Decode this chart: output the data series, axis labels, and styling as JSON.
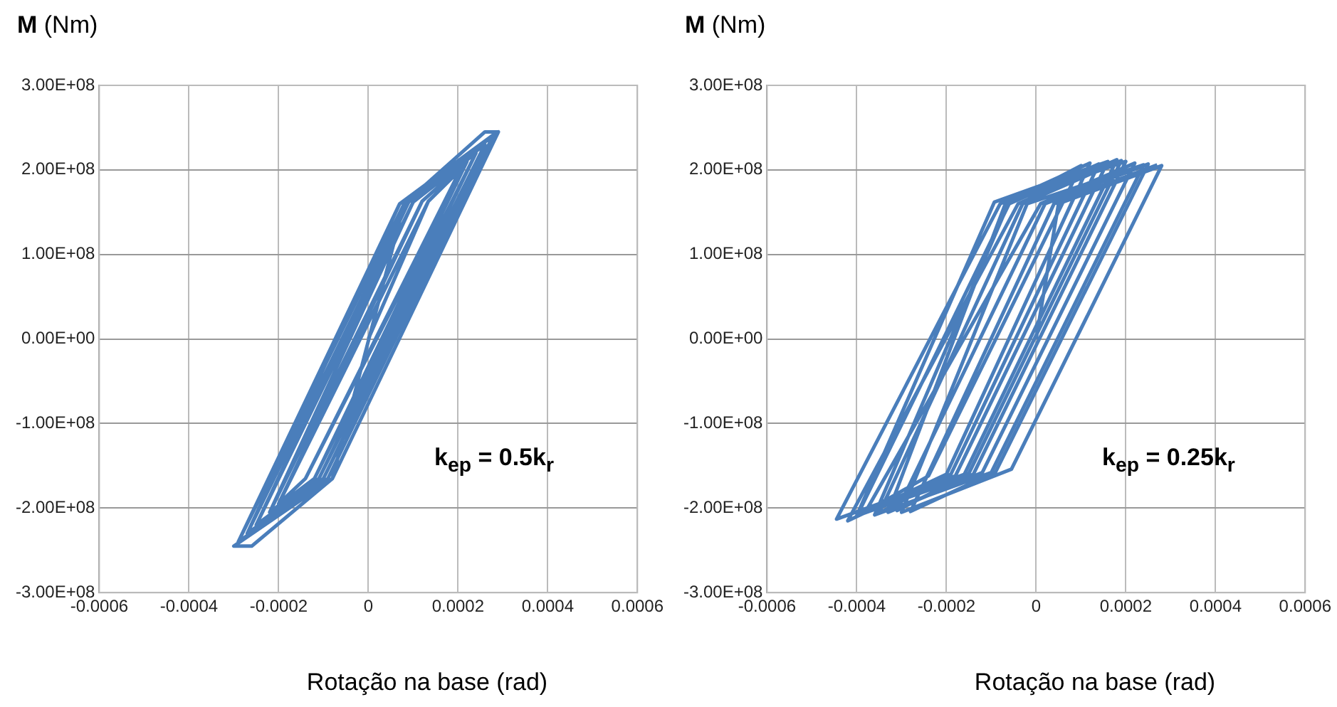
{
  "chart_data": [
    {
      "type": "line",
      "ylabel": "M (Nm)",
      "xlabel": "Rotação na base (rad)",
      "annotations": [
        "k$_{ep}$ = 0.5k$_{r}$"
      ],
      "legend": false,
      "grid": true,
      "marker": "none",
      "line_style": "solid",
      "xlim": [
        -0.0006,
        0.0006
      ],
      "xticks": [
        -0.0006,
        -0.0004,
        -0.0002,
        0,
        0.0002,
        0.0004,
        0.0006
      ],
      "ylim": [
        -300000000,
        300000000
      ],
      "yticks": [
        {
          "value": -300000000,
          "label": "-3.00E+08"
        },
        {
          "value": -200000000,
          "label": "-2.00E+08"
        },
        {
          "value": -100000000,
          "label": "-1.00E+08"
        },
        {
          "value": 0,
          "label": "0.00E+00"
        },
        {
          "value": 100000000,
          "label": "1.00E+08"
        },
        {
          "value": 200000000,
          "label": "2.00E+08"
        },
        {
          "value": 300000000,
          "label": "3.00E+08"
        }
      ],
      "series": [
        {
          "color": "#4a7ebb",
          "x": [
            0,
            0.000134,
            0.000205,
            -0.00014,
            -0.0002,
            0.00012,
            0.00022,
            -0.00012,
            -0.00022,
            0.0001,
            0.00024,
            -0.00011,
            -0.00025,
            9e-05,
            0.00026,
            -0.0001,
            -0.00027,
            7e-05,
            0.00028,
            -9e-05,
            -0.00029,
            8e-05,
            0.00029,
            -8e-05,
            -0.0003,
            -0.00026,
            -8e-05,
            8e-05,
            0.00026,
            0.00029,
            -8e-05,
            -0.00029,
            7e-05,
            0.00028,
            -0.0001,
            -0.00027,
            9e-05,
            0.00026,
            -0.00011,
            -0.00025,
            0.0001,
            0.00024,
            -0.00012,
            -0.00022,
            0.00012,
            0.00022,
            -0.00014,
            -0.0002,
            0.000134,
            0.000205
          ],
          "values": [
            0,
            163000000,
            200000000,
            -165000000,
            -195000000,
            163000000,
            210000000,
            -165000000,
            -205000000,
            162000000,
            220000000,
            -165000000,
            -220000000,
            162000000,
            230000000,
            -165000000,
            -230000000,
            160000000,
            242000000,
            -165000000,
            -240000000,
            160000000,
            245000000,
            -165000000,
            -245000000,
            -245000000,
            -165000000,
            160000000,
            245000000,
            245000000,
            -165000000,
            -240000000,
            160000000,
            242000000,
            -165000000,
            -230000000,
            162000000,
            230000000,
            -165000000,
            -220000000,
            162000000,
            220000000,
            -165000000,
            -205000000,
            163000000,
            210000000,
            -165000000,
            -195000000,
            163000000,
            200000000
          ]
        }
      ]
    },
    {
      "type": "line",
      "ylabel": "M (Nm)",
      "xlabel": "Rotação na base (rad)",
      "annotations": [
        "k$_{ep}$ = 0.25k$_{r}$"
      ],
      "legend": false,
      "grid": true,
      "marker": "none",
      "line_style": "solid",
      "xlim": [
        -0.0006,
        0.0006
      ],
      "xticks": [
        -0.0006,
        -0.0004,
        -0.0002,
        0,
        0.0002,
        0.0004,
        0.0006
      ],
      "ylim": [
        -300000000,
        300000000
      ],
      "yticks": [
        {
          "value": -300000000,
          "label": "-3.00E+08"
        },
        {
          "value": -200000000,
          "label": "-2.00E+08"
        },
        {
          "value": -100000000,
          "label": "-1.00E+08"
        },
        {
          "value": 0,
          "label": "0.00E+00"
        },
        {
          "value": 100000000,
          "label": "1.00E+08"
        },
        {
          "value": 200000000,
          "label": "2.00E+08"
        },
        {
          "value": 300000000,
          "label": "3.00E+08"
        }
      ],
      "series": [
        {
          "color": "#4a7ebb",
          "x": [
            0,
            5e-05,
            0.00028,
            -5.5e-05,
            -0.0003,
            -2e-05,
            0.00024,
            -0.0001,
            -0.00036,
            -6e-05,
            0.0002,
            -0.00014,
            -0.0004,
            -9.3e-05,
            0.00016,
            -0.00018,
            -0.000445,
            -8e-05,
            0.00012,
            -0.0002,
            -0.00042,
            -4e-05,
            0.00018,
            -0.00016,
            -0.00038,
            1e-05,
            0.00022,
            -0.00012,
            -0.00033,
            -7e-05,
            0.0001,
            -0.00024,
            -0.0004,
            -6e-05,
            0.00014,
            -0.00019,
            -0.00035,
            -3e-05,
            0.00019,
            -0.00015,
            -0.00031,
            2e-05,
            0.00025,
            -9e-05,
            -0.00028,
            4e-05,
            0.00027
          ],
          "values": [
            0,
            160000000,
            205000000,
            -154000000,
            -205000000,
            160000000,
            206000000,
            -158000000,
            -208000000,
            162000000,
            210000000,
            -160000000,
            -209000000,
            162000000,
            210000000,
            -162000000,
            -213000000,
            160000000,
            208000000,
            -160000000,
            -215000000,
            160000000,
            212000000,
            -160000000,
            -204000000,
            160000000,
            208000000,
            -158000000,
            -205000000,
            158000000,
            205000000,
            -162000000,
            -210000000,
            160000000,
            207000000,
            -160000000,
            -206000000,
            160000000,
            211000000,
            -159000000,
            -203000000,
            160000000,
            207000000,
            -157000000,
            -204000000,
            160000000,
            206000000
          ]
        }
      ]
    }
  ]
}
